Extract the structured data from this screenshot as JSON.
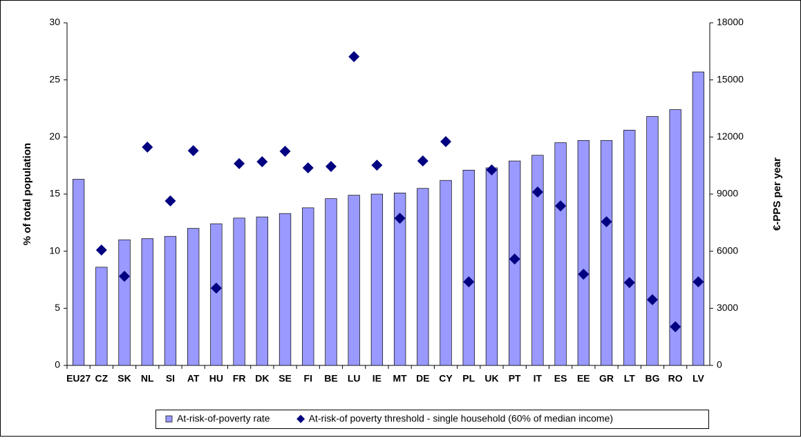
{
  "chart_data": {
    "type": "bar",
    "categories": [
      "EU27",
      "CZ",
      "SK",
      "NL",
      "SI",
      "AT",
      "HU",
      "FR",
      "DK",
      "SE",
      "FI",
      "BE",
      "LU",
      "IE",
      "MT",
      "DE",
      "CY",
      "PL",
      "UK",
      "PT",
      "IT",
      "ES",
      "EE",
      "GR",
      "LT",
      "BG",
      "RO",
      "LV"
    ],
    "series": [
      {
        "name": "At-risk-of-poverty rate",
        "color": "#9999ff",
        "type": "bar",
        "values": [
          16.3,
          8.6,
          11.0,
          11.1,
          11.3,
          12.0,
          12.4,
          12.9,
          13.0,
          13.3,
          13.8,
          14.6,
          14.9,
          15.0,
          15.1,
          15.5,
          16.2,
          17.1,
          17.3,
          17.9,
          18.4,
          19.5,
          19.7,
          19.7,
          20.6,
          21.8,
          22.4,
          25.7
        ]
      },
      {
        "name": "At-risk-of poverty threshold - single household (60% of median income)",
        "color": "#000080",
        "type": "scatter",
        "axis": "y2",
        "values": [
          null,
          6060,
          4680,
          11470,
          8640,
          11280,
          4060,
          10600,
          10700,
          11250,
          10380,
          10450,
          16220,
          10520,
          7730,
          10740,
          11760,
          4390,
          10270,
          5590,
          9110,
          8380,
          4790,
          7550,
          4350,
          3450,
          2030,
          4390
        ]
      }
    ],
    "ylabel": "% of total population",
    "y2label": "€-PPS per year",
    "ylim": [
      0,
      30
    ],
    "yticks": [
      0,
      5,
      10,
      15,
      20,
      25,
      30
    ],
    "y2lim": [
      0,
      18000
    ],
    "y2ticks": [
      0,
      3000,
      6000,
      9000,
      12000,
      15000,
      18000
    ],
    "grid": false,
    "legend": "bottom"
  }
}
